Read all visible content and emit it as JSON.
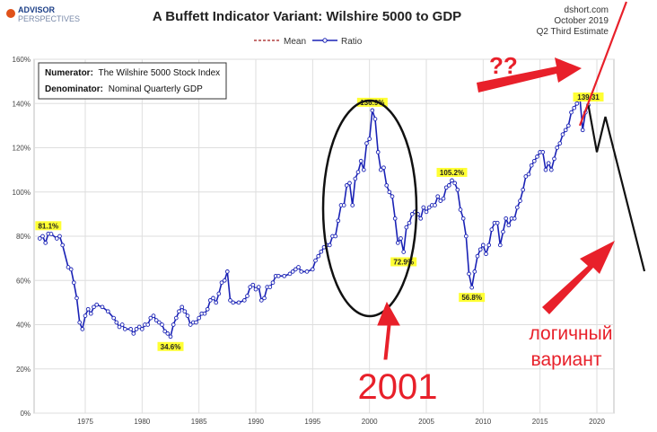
{
  "logo": {
    "line1": "ADVISOR",
    "line2": "PERSPECTIVES"
  },
  "source": {
    "line1": "dshort.com",
    "line2": "October 2019",
    "line3": "Q2 Third Estimate"
  },
  "chart_data": {
    "type": "line",
    "title": "A Buffett Indicator Variant: Wilshire 5000 to GDP",
    "info_box": {
      "numerator_label": "Numerator:",
      "numerator_value": "The Wilshire 5000 Stock Index",
      "denominator_label": "Denominator:",
      "denominator_value": "Nominal Quarterly GDP"
    },
    "legend": {
      "placement": "top-center",
      "items": [
        "Mean",
        "Ratio"
      ]
    },
    "xlim": [
      1970.5,
      2021.5
    ],
    "ylim": [
      0,
      160
    ],
    "x_ticks": [
      1975,
      1980,
      1985,
      1990,
      1995,
      2000,
      2005,
      2010,
      2015,
      2020
    ],
    "y_ticks": [
      0,
      20,
      40,
      60,
      80,
      100,
      120,
      140,
      160
    ],
    "y_tick_labels": [
      "0%",
      "20%",
      "40%",
      "60%",
      "80%",
      "100%",
      "120%",
      "140%",
      "160%"
    ],
    "grid": true,
    "series": [
      {
        "name": "Ratio",
        "color": "#1a22b5",
        "points": [
          [
            1971.0,
            79
          ],
          [
            1971.25,
            80
          ],
          [
            1971.5,
            77
          ],
          [
            1971.75,
            81.1
          ],
          [
            1972.0,
            81
          ],
          [
            1972.5,
            79
          ],
          [
            1972.75,
            80
          ],
          [
            1973.0,
            76
          ],
          [
            1973.5,
            66
          ],
          [
            1973.75,
            65
          ],
          [
            1974.0,
            59
          ],
          [
            1974.25,
            52
          ],
          [
            1974.5,
            41
          ],
          [
            1974.75,
            38
          ],
          [
            1975.0,
            44
          ],
          [
            1975.25,
            47
          ],
          [
            1975.5,
            45
          ],
          [
            1975.75,
            48
          ],
          [
            1976.0,
            49
          ],
          [
            1976.5,
            48
          ],
          [
            1977.0,
            46
          ],
          [
            1977.5,
            43
          ],
          [
            1977.75,
            41
          ],
          [
            1978.0,
            39
          ],
          [
            1978.25,
            40
          ],
          [
            1978.5,
            38
          ],
          [
            1979.0,
            38
          ],
          [
            1979.25,
            36
          ],
          [
            1979.5,
            38
          ],
          [
            1979.75,
            39
          ],
          [
            1980.0,
            38
          ],
          [
            1980.25,
            40
          ],
          [
            1980.5,
            40
          ],
          [
            1980.75,
            43
          ],
          [
            1981.0,
            44
          ],
          [
            1981.25,
            42
          ],
          [
            1981.5,
            41
          ],
          [
            1981.75,
            40
          ],
          [
            1982.0,
            37
          ],
          [
            1982.25,
            36
          ],
          [
            1982.5,
            34.6
          ],
          [
            1982.75,
            40
          ],
          [
            1983.0,
            43
          ],
          [
            1983.25,
            46
          ],
          [
            1983.5,
            48
          ],
          [
            1983.75,
            46
          ],
          [
            1984.0,
            44
          ],
          [
            1984.25,
            40
          ],
          [
            1984.5,
            41
          ],
          [
            1984.75,
            41
          ],
          [
            1985.0,
            43
          ],
          [
            1985.25,
            45
          ],
          [
            1985.5,
            45
          ],
          [
            1985.75,
            47
          ],
          [
            1986.0,
            51
          ],
          [
            1986.25,
            52
          ],
          [
            1986.5,
            50
          ],
          [
            1986.75,
            54
          ],
          [
            1987.0,
            59
          ],
          [
            1987.25,
            60
          ],
          [
            1987.5,
            64
          ],
          [
            1987.75,
            51
          ],
          [
            1988.0,
            50
          ],
          [
            1988.5,
            50
          ],
          [
            1989.0,
            51
          ],
          [
            1989.25,
            53
          ],
          [
            1989.5,
            57
          ],
          [
            1989.75,
            58
          ],
          [
            1990.0,
            56
          ],
          [
            1990.25,
            57
          ],
          [
            1990.5,
            51
          ],
          [
            1990.75,
            52
          ],
          [
            1991.0,
            57
          ],
          [
            1991.25,
            57
          ],
          [
            1991.5,
            59
          ],
          [
            1991.75,
            62
          ],
          [
            1992.0,
            62
          ],
          [
            1992.5,
            62
          ],
          [
            1993.0,
            63
          ],
          [
            1993.25,
            64
          ],
          [
            1993.5,
            65
          ],
          [
            1993.75,
            66
          ],
          [
            1994.0,
            64
          ],
          [
            1994.5,
            64
          ],
          [
            1995.0,
            65
          ],
          [
            1995.25,
            69
          ],
          [
            1995.5,
            71
          ],
          [
            1995.75,
            73
          ],
          [
            1996.0,
            75
          ],
          [
            1996.25,
            76
          ],
          [
            1996.5,
            76
          ],
          [
            1996.75,
            80
          ],
          [
            1997.0,
            80
          ],
          [
            1997.25,
            87
          ],
          [
            1997.5,
            94
          ],
          [
            1997.75,
            94
          ],
          [
            1998.0,
            103
          ],
          [
            1998.25,
            104
          ],
          [
            1998.5,
            94
          ],
          [
            1998.75,
            106
          ],
          [
            1999.0,
            109
          ],
          [
            1999.25,
            114
          ],
          [
            1999.5,
            110
          ],
          [
            1999.75,
            122
          ],
          [
            2000.0,
            124
          ],
          [
            2000.25,
            136.9
          ],
          [
            2000.5,
            133
          ],
          [
            2000.75,
            118
          ],
          [
            2001.0,
            110
          ],
          [
            2001.25,
            111
          ],
          [
            2001.5,
            103
          ],
          [
            2001.75,
            100
          ],
          [
            2002.0,
            98
          ],
          [
            2002.25,
            88
          ],
          [
            2002.5,
            77
          ],
          [
            2002.75,
            79
          ],
          [
            2003.0,
            72.9
          ],
          [
            2003.25,
            84
          ],
          [
            2003.5,
            86
          ],
          [
            2003.75,
            90
          ],
          [
            2004.0,
            91
          ],
          [
            2004.25,
            90
          ],
          [
            2004.5,
            88
          ],
          [
            2004.75,
            93
          ],
          [
            2005.0,
            91
          ],
          [
            2005.25,
            93
          ],
          [
            2005.5,
            94
          ],
          [
            2005.75,
            94
          ],
          [
            2006.0,
            98
          ],
          [
            2006.25,
            96
          ],
          [
            2006.5,
            97
          ],
          [
            2006.75,
            102
          ],
          [
            2007.0,
            103
          ],
          [
            2007.25,
            105.2
          ],
          [
            2007.5,
            104
          ],
          [
            2007.75,
            101
          ],
          [
            2008.0,
            92
          ],
          [
            2008.25,
            88
          ],
          [
            2008.5,
            80
          ],
          [
            2008.75,
            63
          ],
          [
            2009.0,
            56.8
          ],
          [
            2009.25,
            64
          ],
          [
            2009.5,
            71
          ],
          [
            2009.75,
            74
          ],
          [
            2010.0,
            76
          ],
          [
            2010.25,
            72
          ],
          [
            2010.5,
            76
          ],
          [
            2010.75,
            83
          ],
          [
            2011.0,
            86
          ],
          [
            2011.25,
            86
          ],
          [
            2011.5,
            76
          ],
          [
            2011.75,
            82
          ],
          [
            2012.0,
            88
          ],
          [
            2012.25,
            85
          ],
          [
            2012.5,
            88
          ],
          [
            2012.75,
            88
          ],
          [
            2013.0,
            93
          ],
          [
            2013.25,
            96
          ],
          [
            2013.5,
            101
          ],
          [
            2013.75,
            107
          ],
          [
            2014.0,
            108
          ],
          [
            2014.25,
            112
          ],
          [
            2014.5,
            114
          ],
          [
            2014.75,
            116
          ],
          [
            2015.0,
            118
          ],
          [
            2015.25,
            118
          ],
          [
            2015.5,
            110
          ],
          [
            2015.75,
            113
          ],
          [
            2016.0,
            110
          ],
          [
            2016.25,
            115
          ],
          [
            2016.5,
            120
          ],
          [
            2016.75,
            122
          ],
          [
            2017.0,
            126
          ],
          [
            2017.25,
            128
          ],
          [
            2017.5,
            130
          ],
          [
            2017.75,
            136
          ],
          [
            2018.0,
            138
          ],
          [
            2018.25,
            140
          ],
          [
            2018.5,
            143
          ],
          [
            2018.75,
            128
          ],
          [
            2019.0,
            136
          ],
          [
            2019.25,
            139.3
          ]
        ]
      }
    ],
    "data_labels": [
      {
        "x": 1971.75,
        "y": 81.1,
        "text": "81.1%"
      },
      {
        "x": 1982.5,
        "y": 34.6,
        "text": "34.6%"
      },
      {
        "x": 2000.25,
        "y": 136.9,
        "text": "136.9%"
      },
      {
        "x": 2003.0,
        "y": 72.9,
        "text": "72.9%"
      },
      {
        "x": 2007.25,
        "y": 105.2,
        "text": "105.2%"
      },
      {
        "x": 2009.0,
        "y": 56.8,
        "text": "56.8%"
      },
      {
        "x": 2019.25,
        "y": 139.3,
        "text": "139.31"
      }
    ]
  },
  "annotations": {
    "question": "??",
    "year_label": "2001",
    "variant_line1": "логичный",
    "variant_line2": "вариант",
    "forecast_path": [
      [
        2018.0,
        130
      ],
      [
        2019.25,
        139.3
      ],
      [
        2020.0,
        118
      ],
      [
        2020.75,
        134
      ],
      [
        2021.0,
        128
      ],
      [
        2021.6,
        125
      ]
    ],
    "forecast_tail_end": [
      2025.0,
      64
    ],
    "red_trend_start": [
      2018.5,
      130
    ],
    "red_trend_end": [
      2022.6,
      190
    ]
  }
}
